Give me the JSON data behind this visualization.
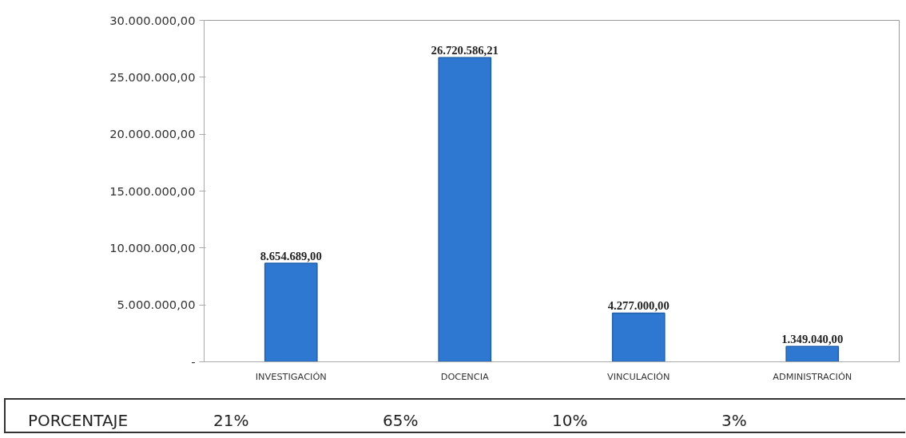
{
  "chart_data": {
    "type": "bar",
    "categories": [
      "INVESTIGACIÓN",
      "DOCENCIA",
      "VINCULACIÓN",
      "ADMINISTRACIÓN"
    ],
    "values": [
      8654689,
      26720586.21,
      4277000,
      1349040
    ],
    "value_labels": [
      "8.654.689,00",
      "26.720.586,21",
      "4.277.000,00",
      "1.349.040,00"
    ],
    "color": "#2f78d2",
    "ylim": [
      0,
      30000000
    ],
    "yticks": [
      {
        "value": 0,
        "label": "-"
      },
      {
        "value": 5000000,
        "label": "5.000.000,00"
      },
      {
        "value": 10000000,
        "label": "10.000.000,00"
      },
      {
        "value": 15000000,
        "label": "15.000.000,00"
      },
      {
        "value": 20000000,
        "label": "20.000.000,00"
      },
      {
        "value": 25000000,
        "label": "25.000.000,00"
      },
      {
        "value": 30000000,
        "label": "30.000.000,00"
      }
    ],
    "grid": false,
    "annotations": [
      "PORCENTAJE",
      "21%",
      "65%",
      "10%",
      "3%"
    ]
  }
}
